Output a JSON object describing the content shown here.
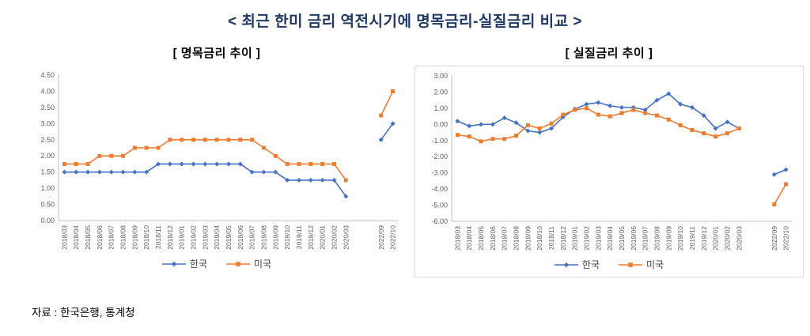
{
  "page_title": "< 최근 한미 금리 역전시기에 명목금리-실질금리 비교 >",
  "source_note": "자료 :  한국은행, 통계청",
  "colors": {
    "korea_series": "#4472C4",
    "us_series": "#ED7D31",
    "axis_line": "#BFBFBF",
    "tick_label": "#595959",
    "title_text": "#1F3864",
    "chart_border": "#D9D9D9"
  },
  "chart_data": [
    {
      "type": "line",
      "title": "[ 명목금리 추이 ]",
      "ylim": [
        0,
        4.5
      ],
      "ytick_step": 0.5,
      "grid": false,
      "legend_position": "bottom",
      "gap_after": "2020/03",
      "gap_slots": 2,
      "categories": [
        "2018/03",
        "2018/04",
        "2018/05",
        "2018/06",
        "2018/07",
        "2018/08",
        "2018/09",
        "2018/10",
        "2018/11",
        "2018/12",
        "2019/01",
        "2019/02",
        "2019/03",
        "2019/04",
        "2019/05",
        "2019/06",
        "2019/07",
        "2019/08",
        "2019/09",
        "2019/10",
        "2019/11",
        "2019/12",
        "2020/01",
        "2020/02",
        "2020/03",
        "2022/09",
        "2022/10"
      ],
      "series": [
        {
          "name": "한국",
          "color": "#4472C4",
          "marker": "diamond",
          "values": [
            1.5,
            1.5,
            1.5,
            1.5,
            1.5,
            1.5,
            1.5,
            1.5,
            1.75,
            1.75,
            1.75,
            1.75,
            1.75,
            1.75,
            1.75,
            1.75,
            1.5,
            1.5,
            1.5,
            1.25,
            1.25,
            1.25,
            1.25,
            1.25,
            0.75,
            2.5,
            3.0
          ]
        },
        {
          "name": "미국",
          "color": "#ED7D31",
          "marker": "square",
          "values": [
            1.75,
            1.75,
            1.75,
            2.0,
            2.0,
            2.0,
            2.25,
            2.25,
            2.25,
            2.5,
            2.5,
            2.5,
            2.5,
            2.5,
            2.5,
            2.5,
            2.5,
            2.25,
            2.0,
            1.75,
            1.75,
            1.75,
            1.75,
            1.75,
            1.25,
            3.25,
            4.0
          ]
        }
      ]
    },
    {
      "type": "line",
      "title": "[ 실질금리 추이 ]",
      "ylim": [
        -6,
        3
      ],
      "ytick_step": 1,
      "grid": false,
      "legend_position": "bottom",
      "gap_after": "2020/03",
      "gap_slots": 2,
      "categories": [
        "2018/03",
        "2018/04",
        "2018/05",
        "2018/06",
        "2018/07",
        "2018/08",
        "2018/09",
        "2018/10",
        "2018/11",
        "2018/12",
        "2019/01",
        "2019/02",
        "2019/03",
        "2019/04",
        "2019/05",
        "2019/06",
        "2019/07",
        "2019/08",
        "2019/09",
        "2019/10",
        "2019/11",
        "2019/12",
        "2020/01",
        "2020/02",
        "2020/03",
        "2022/09",
        "2022/10"
      ],
      "series": [
        {
          "name": "한국",
          "color": "#4472C4",
          "marker": "diamond",
          "values": [
            0.2,
            -0.1,
            0.0,
            0.0,
            0.4,
            0.1,
            -0.4,
            -0.5,
            -0.25,
            0.45,
            0.95,
            1.25,
            1.35,
            1.15,
            1.05,
            1.05,
            0.9,
            1.5,
            1.9,
            1.25,
            1.05,
            0.55,
            -0.25,
            0.15,
            -0.25,
            -3.1,
            -2.8
          ]
        },
        {
          "name": "미국",
          "color": "#ED7D31",
          "marker": "square",
          "values": [
            -0.65,
            -0.75,
            -1.05,
            -0.9,
            -0.9,
            -0.7,
            -0.05,
            -0.25,
            0.05,
            0.6,
            0.9,
            1.0,
            0.6,
            0.5,
            0.7,
            0.9,
            0.7,
            0.55,
            0.3,
            -0.05,
            -0.35,
            -0.55,
            -0.75,
            -0.55,
            -0.25,
            -4.95,
            -3.7
          ]
        }
      ]
    }
  ]
}
